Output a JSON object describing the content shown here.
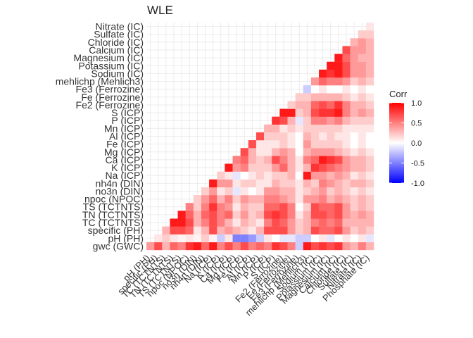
{
  "chart_data": {
    "type": "heatmap",
    "title": "WLE",
    "xlabel": "",
    "ylabel": "",
    "variables": [
      "gwc (GWC)",
      "pH (PH)",
      "specific (PH)",
      "TC (TCTNTS)",
      "TN (TCTNTS)",
      "TS (TCTNTS)",
      "npoc (NPOC)",
      "no3n (DIN)",
      "nh4n (DIN)",
      "Na (ICP)",
      "K (ICP)",
      "Ca (ICP)",
      "Mg (ICP)",
      "Fe (ICP)",
      "Al (ICP)",
      "Mn (ICP)",
      "P (ICP)",
      "S (ICP)",
      "Fe2 (Ferrozine)",
      "Fe (Ferrozine)",
      "Fe3 (Ferrozine)",
      "mehlichp (Mehlich3)",
      "Sodium (IC)",
      "Potassium (IC)",
      "Magnesium (IC)",
      "Calcium (IC)",
      "Chloride (IC)",
      "Sulfate (IC)",
      "Nitrate (IC)",
      "Phosphate (IC)"
    ],
    "x_tick_labels": [
      "pH (PH)",
      "specific (PH)",
      "TC (TCTNTS)",
      "TN (TCTNTS)",
      "TS (TCTNTS)",
      "npoc (NPOC)",
      "no3n (DIN)",
      "nh4n (DIN)",
      "Na (ICP)",
      "K (ICP)",
      "Ca (ICP)",
      "Mg (ICP)",
      "Fe (ICP)",
      "Al (ICP)",
      "Mn (ICP)",
      "P (ICP)",
      "S (ICP)",
      "Fe2 (Ferrozine)",
      "Fe (Ferrozine)",
      "Fe3 (Ferrozine)",
      "mehlichp (Mehlich3)",
      "Sodium (IC)",
      "Potassium (IC)",
      "Magnesium (IC)",
      "Calcium (IC)",
      "Chloride (IC)",
      "Sulfate (IC)",
      "Nitrate (IC)",
      "Phosphate (IC)"
    ],
    "y_tick_labels": [
      "gwc (GWC)",
      "pH (PH)",
      "specific (PH)",
      "TC (TCTNTS)",
      "TN (TCTNTS)",
      "TS (TCTNTS)",
      "npoc (NPOC)",
      "no3n (DIN)",
      "nh4n (DIN)",
      "Na (ICP)",
      "K (ICP)",
      "Ca (ICP)",
      "Mg (ICP)",
      "Fe (ICP)",
      "Al (ICP)",
      "Mn (ICP)",
      "P (ICP)",
      "S (ICP)",
      "Fe2 (Ferrozine)",
      "Fe (Ferrozine)",
      "Fe3 (Ferrozine)",
      "mehlichp (Mehlich3)",
      "Sodium (IC)",
      "Potassium (IC)",
      "Magnesium (IC)",
      "Calcium (IC)",
      "Chloride (IC)",
      "Sulfate (IC)",
      "Nitrate (IC)"
    ],
    "x_axis_variable_start": 1,
    "lower_triangle_values": [
      [],
      [
        0.4
      ],
      [
        0.7,
        0.1
      ],
      [
        0.3,
        0.2,
        0.3
      ],
      [
        0.6,
        0.1,
        0.7,
        0.9
      ],
      [
        0.5,
        0.05,
        0.7,
        0.9,
        0.9
      ],
      [
        0.8,
        0.1,
        0.6,
        0.7,
        0.6,
        0.5
      ],
      [
        0.9,
        0.05,
        0.1,
        0.3,
        0.3,
        0.2,
        0.2
      ],
      [
        0.6,
        0.2,
        0.3,
        0.5,
        0.6,
        0.5,
        0.4,
        0.2
      ],
      [
        0.9,
        0.05,
        0.7,
        0.7,
        0.7,
        0.8,
        0.6,
        0.4,
        0.9
      ],
      [
        0.5,
        -0.2,
        0.3,
        0.5,
        0.5,
        0.5,
        0.3,
        0.1,
        0.4,
        0.2
      ],
      [
        0.7,
        0.1,
        0.4,
        0.3,
        0.6,
        0.4,
        0.5,
        0.2,
        0.4,
        0.1,
        0.9
      ],
      [
        0.5,
        -0.5,
        0.3,
        0.1,
        0.2,
        0.1,
        0.2,
        -0.1,
        0.1,
        -0.1,
        0.4,
        0.5
      ],
      [
        0.7,
        -0.5,
        0.2,
        0.3,
        0.4,
        0.3,
        0.4,
        0.1,
        0.2,
        0.0,
        0.5,
        0.6,
        0.7
      ],
      [
        0.5,
        -0.4,
        0.1,
        0.2,
        0.2,
        0.2,
        0.3,
        0.0,
        0.2,
        0.1,
        0.2,
        0.3,
        0.3,
        0.7
      ],
      [
        0.6,
        -0.2,
        0.3,
        0.1,
        0.3,
        0.2,
        0.3,
        0.1,
        0.1,
        0.2,
        0.2,
        0.2,
        0.1,
        0.1,
        0.7
      ],
      [
        0.5,
        0.1,
        0.7,
        0.5,
        0.7,
        0.6,
        0.5,
        0.4,
        0.1,
        0.1,
        0.2,
        0.3,
        0.1,
        0.1,
        0.2,
        0.3
      ],
      [
        0.8,
        0.0,
        0.7,
        0.7,
        0.8,
        0.6,
        0.5,
        0.4,
        0.3,
        0.2,
        0.4,
        0.7,
        0.3,
        0.1,
        0.2,
        0.3,
        0.8
      ],
      [
        0.7,
        -0.1,
        0.7,
        0.6,
        0.7,
        0.7,
        0.4,
        0.3,
        0.2,
        0.2,
        0.6,
        0.5,
        0.4,
        0.2,
        0.2,
        0.1,
        0.7,
        0.9
      ],
      [
        0.5,
        -0.1,
        0.4,
        0.4,
        0.5,
        0.5,
        0.3,
        0.3,
        0.2,
        0.3,
        0.3,
        0.3,
        0.3,
        0.1,
        0.1,
        0.2,
        0.3,
        0.9,
        0.2
      ],
      [
        -0.2,
        -0.2,
        0.2,
        0.2,
        0.1,
        0.0,
        0.1,
        0.1,
        0.1,
        0.0,
        0.1,
        0.1,
        0.0,
        0.0,
        0.0,
        0.1,
        -0.1,
        0.2,
        0.3,
        0.2
      ],
      [
        0.9,
        -0.2,
        0.3,
        0.3,
        0.3,
        0.2,
        0.4,
        0.2,
        0.3,
        0.9,
        0.3,
        0.5,
        0.3,
        0.4,
        0.3,
        0.2,
        0.2,
        0.3,
        0.3,
        0.2,
        -0.2
      ],
      [
        0.7,
        0.0,
        0.7,
        0.5,
        0.7,
        0.7,
        0.4,
        0.3,
        0.2,
        0.4,
        0.8,
        0.6,
        0.4,
        0.2,
        0.2,
        0.2,
        0.5,
        0.7,
        0.6,
        0.3,
        0.0,
        0.4
      ],
      [
        0.8,
        0.1,
        0.6,
        0.6,
        0.7,
        0.6,
        0.5,
        0.4,
        0.5,
        0.4,
        0.7,
        0.9,
        0.4,
        0.2,
        0.1,
        0.2,
        0.5,
        0.8,
        0.7,
        0.3,
        0.1,
        0.6,
        0.9
      ],
      [
        0.7,
        -0.1,
        0.6,
        0.5,
        0.6,
        0.6,
        0.3,
        0.2,
        0.4,
        0.3,
        0.6,
        0.8,
        0.4,
        0.2,
        0.2,
        0.2,
        0.4,
        0.8,
        0.6,
        0.3,
        0.0,
        0.5,
        0.8,
        0.9
      ],
      [
        0.8,
        0.0,
        0.7,
        0.6,
        0.7,
        0.7,
        0.4,
        0.3,
        0.3,
        0.4,
        0.5,
        0.7,
        0.3,
        0.2,
        0.1,
        0.2,
        0.5,
        0.9,
        0.8,
        0.3,
        0.0,
        0.5,
        0.9,
        0.9,
        0.9
      ],
      [
        0.4,
        0.1,
        0.4,
        0.3,
        0.4,
        0.4,
        0.3,
        0.2,
        0.2,
        0.3,
        0.4,
        0.4,
        0.2,
        0.1,
        0.1,
        0.1,
        0.3,
        0.5,
        0.5,
        0.2,
        0.1,
        0.4,
        0.7,
        0.7,
        0.6,
        0.7
      ],
      [
        0.3,
        0.0,
        0.2,
        0.3,
        0.3,
        0.2,
        0.2,
        0.1,
        0.3,
        0.1,
        0.3,
        0.3,
        0.1,
        0.0,
        0.0,
        0.1,
        0.2,
        0.3,
        0.3,
        0.1,
        0.0,
        0.2,
        0.4,
        0.4,
        0.4,
        0.4,
        0.3
      ],
      [
        0.5,
        0.1,
        0.3,
        0.3,
        0.4,
        0.3,
        0.3,
        0.2,
        0.3,
        0.2,
        0.3,
        0.3,
        0.2,
        0.1,
        0.1,
        0.1,
        0.2,
        0.4,
        0.3,
        0.2,
        0.1,
        0.3,
        0.4,
        0.4,
        0.3,
        0.4,
        0.4,
        0.2
      ],
      [
        0.3,
        -0.1,
        0.2,
        0.3,
        0.3,
        0.2,
        0.2,
        0.1,
        0.2,
        0.1,
        0.2,
        0.2,
        0.1,
        0.0,
        0.0,
        0.1,
        0.2,
        0.3,
        0.2,
        0.1,
        0.0,
        0.2,
        0.3,
        0.3,
        0.3,
        0.3,
        0.3,
        0.2,
        0.1
      ]
    ],
    "color_scale": {
      "low": "#0000FF",
      "mid": "#FFFFFF",
      "high": "#FF0000",
      "limits": [
        -1,
        1
      ]
    },
    "legend": {
      "title": "Corr",
      "ticks": [
        "1.0",
        "0.5",
        "0.0",
        "-0.5",
        "-1.0"
      ],
      "tick_values": [
        1.0,
        0.5,
        0.0,
        -0.5,
        -1.0
      ],
      "placement": "right"
    },
    "grid": true
  }
}
